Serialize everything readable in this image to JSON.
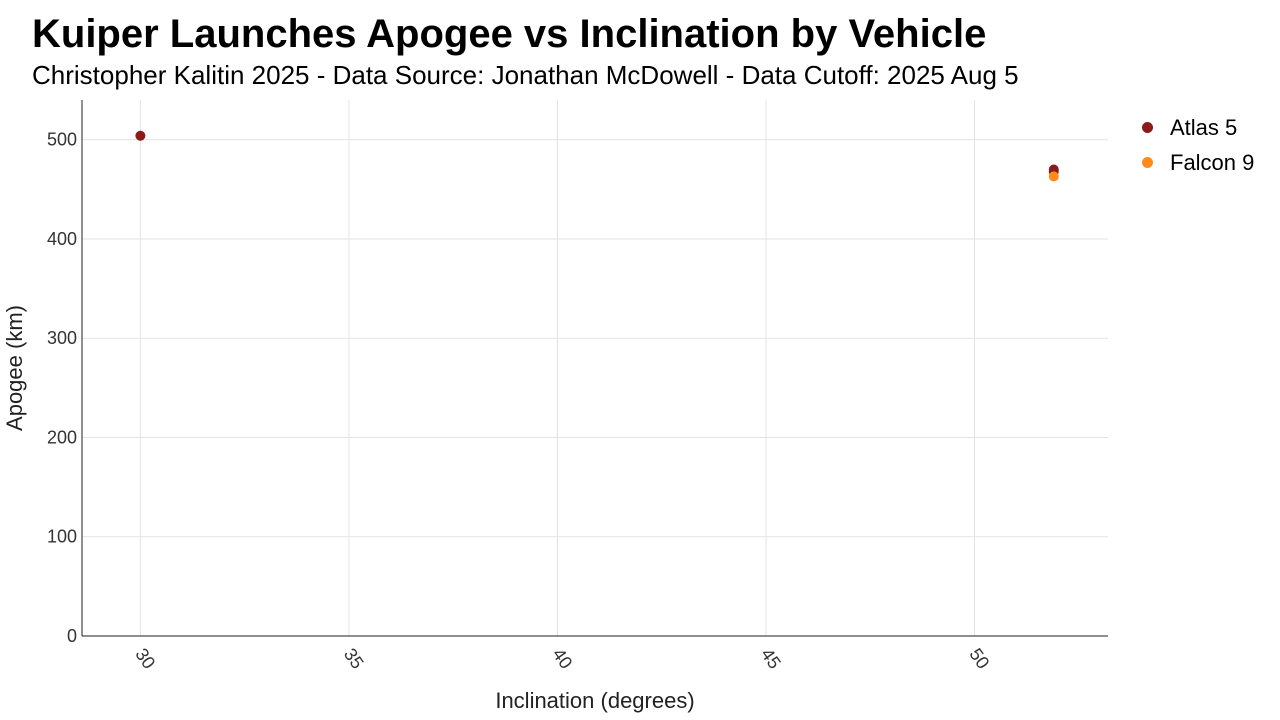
{
  "chart_data": {
    "type": "scatter",
    "title": "Kuiper Launches Apogee vs Inclination by Vehicle",
    "subtitle": "Christopher Kalitin 2025 - Data Source: Jonathan McDowell - Data Cutoff: 2025 Aug 5",
    "xlabel": "Inclination (degrees)",
    "ylabel": "Apogee (km)",
    "xlim": [
      28.6,
      53.2
    ],
    "ylim": [
      0,
      540
    ],
    "x_ticks": [
      30,
      35,
      40,
      45,
      50
    ],
    "y_ticks": [
      0,
      100,
      200,
      300,
      400,
      500
    ],
    "grid": true,
    "legend_position": "right",
    "series": [
      {
        "name": "Atlas 5",
        "color": "#8b1a1a",
        "points": [
          {
            "x": 30.0,
            "y": 504
          },
          {
            "x": 51.9,
            "y": 470
          },
          {
            "x": 51.9,
            "y": 468
          }
        ]
      },
      {
        "name": "Falcon 9",
        "color": "#ff8c1a",
        "points": [
          {
            "x": 51.9,
            "y": 463
          }
        ]
      }
    ]
  }
}
